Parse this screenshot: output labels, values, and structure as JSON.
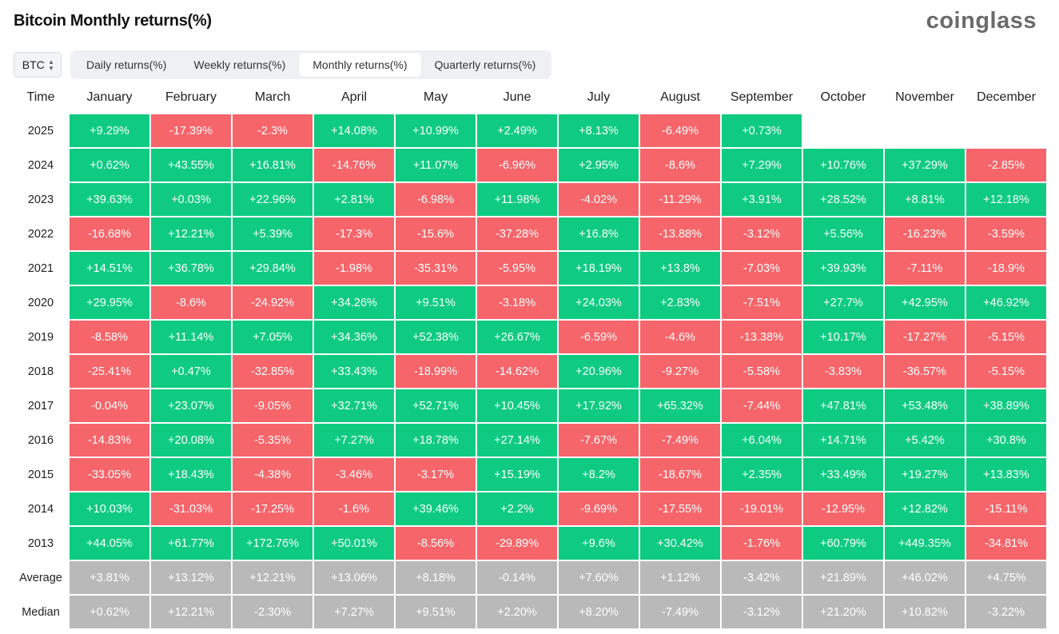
{
  "title": "Bitcoin Monthly returns(%)",
  "logo": "coinglass",
  "asset_select": {
    "value": "BTC",
    "icon": "chevron-updown-icon"
  },
  "tabs": [
    {
      "label": "Daily returns(%)",
      "active": false
    },
    {
      "label": "Weekly returns(%)",
      "active": false
    },
    {
      "label": "Monthly returns(%)",
      "active": true
    },
    {
      "label": "Quarterly returns(%)",
      "active": false
    }
  ],
  "colors": {
    "positive": "#0ecb81",
    "negative": "#f6656a",
    "summary": "#b9b9b9"
  },
  "chart_data": {
    "type": "heatmap",
    "title": "Bitcoin Monthly returns(%)",
    "row_header": "Time",
    "columns": [
      "January",
      "February",
      "March",
      "April",
      "May",
      "June",
      "July",
      "August",
      "September",
      "October",
      "November",
      "December"
    ],
    "rows": [
      {
        "label": "2025",
        "values": [
          "+9.29%",
          "-17.39%",
          "-2.3%",
          "+14.08%",
          "+10.99%",
          "+2.49%",
          "+8.13%",
          "-6.49%",
          "+0.73%",
          "",
          "",
          ""
        ]
      },
      {
        "label": "2024",
        "values": [
          "+0.62%",
          "+43.55%",
          "+16.81%",
          "-14.76%",
          "+11.07%",
          "-6.96%",
          "+2.95%",
          "-8.6%",
          "+7.29%",
          "+10.76%",
          "+37.29%",
          "-2.85%"
        ]
      },
      {
        "label": "2023",
        "values": [
          "+39.63%",
          "+0.03%",
          "+22.96%",
          "+2.81%",
          "-6.98%",
          "+11.98%",
          "-4.02%",
          "-11.29%",
          "+3.91%",
          "+28.52%",
          "+8.81%",
          "+12.18%"
        ]
      },
      {
        "label": "2022",
        "values": [
          "-16.68%",
          "+12.21%",
          "+5.39%",
          "-17.3%",
          "-15.6%",
          "-37.28%",
          "+16.8%",
          "-13.88%",
          "-3.12%",
          "+5.56%",
          "-16.23%",
          "-3.59%"
        ]
      },
      {
        "label": "2021",
        "values": [
          "+14.51%",
          "+36.78%",
          "+29.84%",
          "-1.98%",
          "-35.31%",
          "-5.95%",
          "+18.19%",
          "+13.8%",
          "-7.03%",
          "+39.93%",
          "-7.11%",
          "-18.9%"
        ]
      },
      {
        "label": "2020",
        "values": [
          "+29.95%",
          "-8.6%",
          "-24.92%",
          "+34.26%",
          "+9.51%",
          "-3.18%",
          "+24.03%",
          "+2.83%",
          "-7.51%",
          "+27.7%",
          "+42.95%",
          "+46.92%"
        ]
      },
      {
        "label": "2019",
        "values": [
          "-8.58%",
          "+11.14%",
          "+7.05%",
          "+34.36%",
          "+52.38%",
          "+26.67%",
          "-6.59%",
          "-4.6%",
          "-13.38%",
          "+10.17%",
          "-17.27%",
          "-5.15%"
        ]
      },
      {
        "label": "2018",
        "values": [
          "-25.41%",
          "+0.47%",
          "-32.85%",
          "+33.43%",
          "-18.99%",
          "-14.62%",
          "+20.96%",
          "-9.27%",
          "-5.58%",
          "-3.83%",
          "-36.57%",
          "-5.15%"
        ]
      },
      {
        "label": "2017",
        "values": [
          "-0.04%",
          "+23.07%",
          "-9.05%",
          "+32.71%",
          "+52.71%",
          "+10.45%",
          "+17.92%",
          "+65.32%",
          "-7.44%",
          "+47.81%",
          "+53.48%",
          "+38.89%"
        ]
      },
      {
        "label": "2016",
        "values": [
          "-14.83%",
          "+20.08%",
          "-5.35%",
          "+7.27%",
          "+18.78%",
          "+27.14%",
          "-7.67%",
          "-7.49%",
          "+6.04%",
          "+14.71%",
          "+5.42%",
          "+30.8%"
        ]
      },
      {
        "label": "2015",
        "values": [
          "-33.05%",
          "+18.43%",
          "-4.38%",
          "-3.46%",
          "-3.17%",
          "+15.19%",
          "+8.2%",
          "-18.67%",
          "+2.35%",
          "+33.49%",
          "+19.27%",
          "+13.83%"
        ]
      },
      {
        "label": "2014",
        "values": [
          "+10.03%",
          "-31.03%",
          "-17.25%",
          "-1.6%",
          "+39.46%",
          "+2.2%",
          "-9.69%",
          "-17.55%",
          "-19.01%",
          "-12.95%",
          "+12.82%",
          "-15.11%"
        ]
      },
      {
        "label": "2013",
        "values": [
          "+44.05%",
          "+61.77%",
          "+172.76%",
          "+50.01%",
          "-8.56%",
          "-29.89%",
          "+9.6%",
          "+30.42%",
          "-1.76%",
          "+60.79%",
          "+449.35%",
          "-34.81%"
        ]
      }
    ],
    "summary_rows": [
      {
        "label": "Average",
        "values": [
          "+3.81%",
          "+13.12%",
          "+12.21%",
          "+13.06%",
          "+8.18%",
          "-0.14%",
          "+7.60%",
          "+1.12%",
          "-3.42%",
          "+21.89%",
          "+46.02%",
          "+4.75%"
        ]
      },
      {
        "label": "Median",
        "values": [
          "+0.62%",
          "+12.21%",
          "-2.30%",
          "+7.27%",
          "+9.51%",
          "+2.20%",
          "+8.20%",
          "-7.49%",
          "-3.12%",
          "+21.20%",
          "+10.82%",
          "-3.22%"
        ]
      }
    ]
  }
}
